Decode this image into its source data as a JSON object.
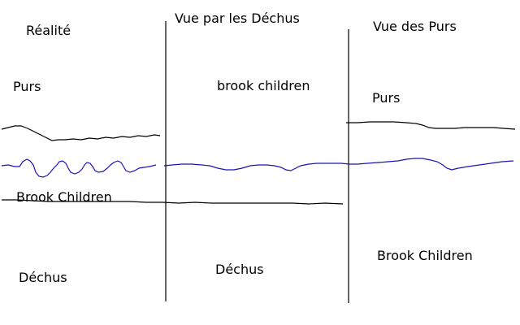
{
  "panels": {
    "reality": {
      "title": "Réalité",
      "top_label": "Purs",
      "middle_label": "Brook Children",
      "bottom_label": "Déchus"
    },
    "fallen_view": {
      "title": "Vue par les Déchus",
      "top_label": "brook children",
      "bottom_label": "Déchus"
    },
    "pure_view": {
      "title": "Vue des Purs",
      "top_label": "Purs",
      "bottom_label": "Brook Children"
    }
  },
  "colors": {
    "background": "#ffffff",
    "ink": "#000000",
    "boundary_line": "#1c14b4"
  }
}
